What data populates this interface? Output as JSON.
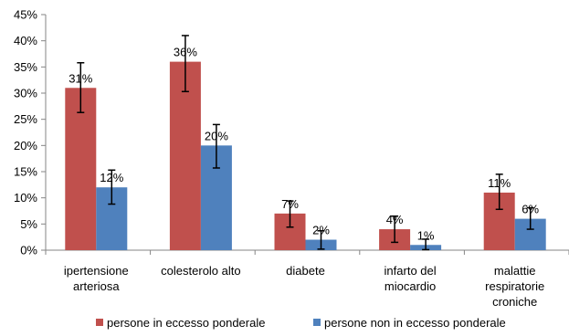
{
  "chart_data": {
    "type": "bar",
    "categories": [
      [
        "ipertensione",
        "arteriosa"
      ],
      [
        "colesterolo alto"
      ],
      [
        "diabete"
      ],
      [
        "infarto del",
        "miocardio"
      ],
      [
        "malattie",
        "respiratorie",
        "croniche"
      ]
    ],
    "series": [
      {
        "name": "persone in eccesso ponderale",
        "values": [
          31,
          36,
          7,
          4,
          11
        ],
        "labels": [
          "31%",
          "36%",
          "7%",
          "4%",
          "11%"
        ],
        "error_low": [
          26.3,
          30.3,
          4.4,
          1.5,
          7.8
        ],
        "error_high": [
          35.8,
          41.0,
          9.4,
          6.5,
          14.5
        ],
        "color": "#C0504D"
      },
      {
        "name": "persone non in eccesso ponderale",
        "values": [
          12,
          20,
          2,
          1,
          6
        ],
        "labels": [
          "12%",
          "20%",
          "2%",
          "1%",
          "6%"
        ],
        "error_low": [
          8.8,
          15.7,
          0.2,
          0.1,
          4.0
        ],
        "error_high": [
          15.3,
          24.0,
          3.7,
          2.1,
          8.1
        ],
        "color": "#4F81BD"
      }
    ],
    "y_ticks": [
      "0%",
      "5%",
      "10%",
      "15%",
      "20%",
      "25%",
      "30%",
      "35%",
      "40%",
      "45%"
    ],
    "ylim": [
      0,
      45
    ],
    "grid": false,
    "legend_position": "bottom"
  }
}
